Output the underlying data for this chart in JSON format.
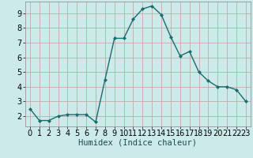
{
  "x": [
    0,
    1,
    2,
    3,
    4,
    5,
    6,
    7,
    8,
    9,
    10,
    11,
    12,
    13,
    14,
    15,
    16,
    17,
    18,
    19,
    20,
    21,
    22,
    23
  ],
  "y": [
    2.5,
    1.7,
    1.7,
    2.0,
    2.1,
    2.1,
    2.1,
    1.6,
    4.5,
    7.3,
    7.3,
    8.6,
    9.3,
    9.5,
    8.9,
    7.4,
    6.1,
    6.4,
    5.0,
    4.4,
    4.0,
    4.0,
    3.8,
    3.0
  ],
  "line_color": "#1a6b6b",
  "marker": "D",
  "marker_size": 2.0,
  "bg_color": "#cceaea",
  "grid_color_major": "#c4a8a8",
  "grid_color_minor": "#ddd0d0",
  "xlabel": "Humidex (Indice chaleur)",
  "xlim": [
    -0.5,
    23.5
  ],
  "ylim": [
    1.3,
    9.8
  ],
  "yticks": [
    2,
    3,
    4,
    5,
    6,
    7,
    8,
    9
  ],
  "xticks": [
    0,
    1,
    2,
    3,
    4,
    5,
    6,
    7,
    8,
    9,
    10,
    11,
    12,
    13,
    14,
    15,
    16,
    17,
    18,
    19,
    20,
    21,
    22,
    23
  ],
  "xlabel_fontsize": 7.5,
  "tick_fontsize": 7.0,
  "line_width": 1.0
}
